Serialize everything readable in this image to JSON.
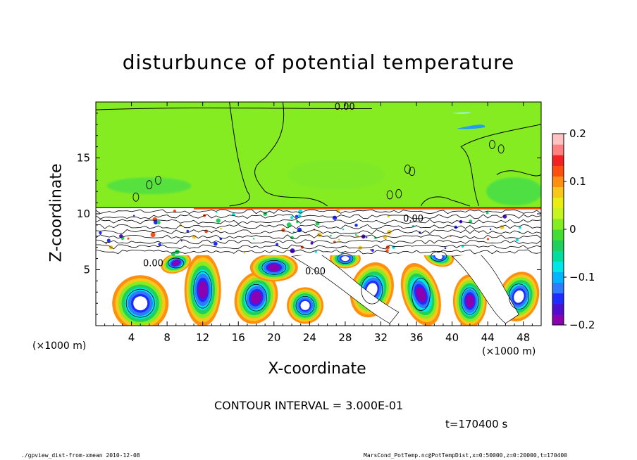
{
  "chart_data": {
    "type": "heatmap",
    "title": "disturbunce of potential temperature",
    "xlabel": "X-coordinate",
    "ylabel": "Z-coordinate",
    "x_unit_left": "(×1000 m)",
    "x_unit_right": "(×1000 m)",
    "xlim": [
      0,
      50
    ],
    "ylim": [
      0,
      20
    ],
    "x_ticks": [
      4,
      8,
      12,
      16,
      20,
      24,
      28,
      32,
      36,
      40,
      44,
      48
    ],
    "y_ticks": [
      5,
      10,
      15
    ],
    "colorbar": {
      "min": -0.2,
      "max": 0.2,
      "ticks": [
        {
          "value": 0.2,
          "label": "0.2"
        },
        {
          "value": 0.1,
          "label": "0.1"
        },
        {
          "value": 0,
          "label": "0"
        },
        {
          "value": -0.1,
          "label": "−0.1"
        },
        {
          "value": -0.2,
          "label": "−0.2"
        }
      ],
      "colors": [
        "#8b00b0",
        "#4b0fd0",
        "#1e2cff",
        "#2f7bff",
        "#00b4ff",
        "#00e5e5",
        "#00dd9c",
        "#1fd15a",
        "#44dd33",
        "#86ec22",
        "#c6f41e",
        "#e8ef10",
        "#f7c71a",
        "#ff8f10",
        "#ff4f10",
        "#f22222",
        "#ff8080",
        "#ffc2c2"
      ]
    },
    "contour_labels": [
      {
        "text": "0.00",
        "x": 26.8,
        "y": 19.3
      },
      {
        "text": "0.00",
        "x": 5.3,
        "y": 5.3
      },
      {
        "text": "0.00",
        "x": 23.5,
        "y": 4.6
      },
      {
        "text": "0.00",
        "x": 34.5,
        "y": 9.3
      }
    ],
    "regions": {
      "upper_layer": {
        "z_range": [
          10.5,
          20
        ],
        "value": 0.0
      },
      "lower_layer": {
        "z_range": [
          0,
          10.5
        ],
        "value_range": [
          -0.2,
          0.2
        ]
      }
    }
  },
  "notes": {
    "contour_interval": "CONTOUR INTERVAL = 3.000E-01",
    "time": "t=170400 s",
    "footer_left": "./gpview_dist-from-xmean  2010-12-08",
    "footer_right": "MarsCond_PotTemp.nc@PotTempDist,x=0:50000,z=0:20000,t=170400"
  }
}
